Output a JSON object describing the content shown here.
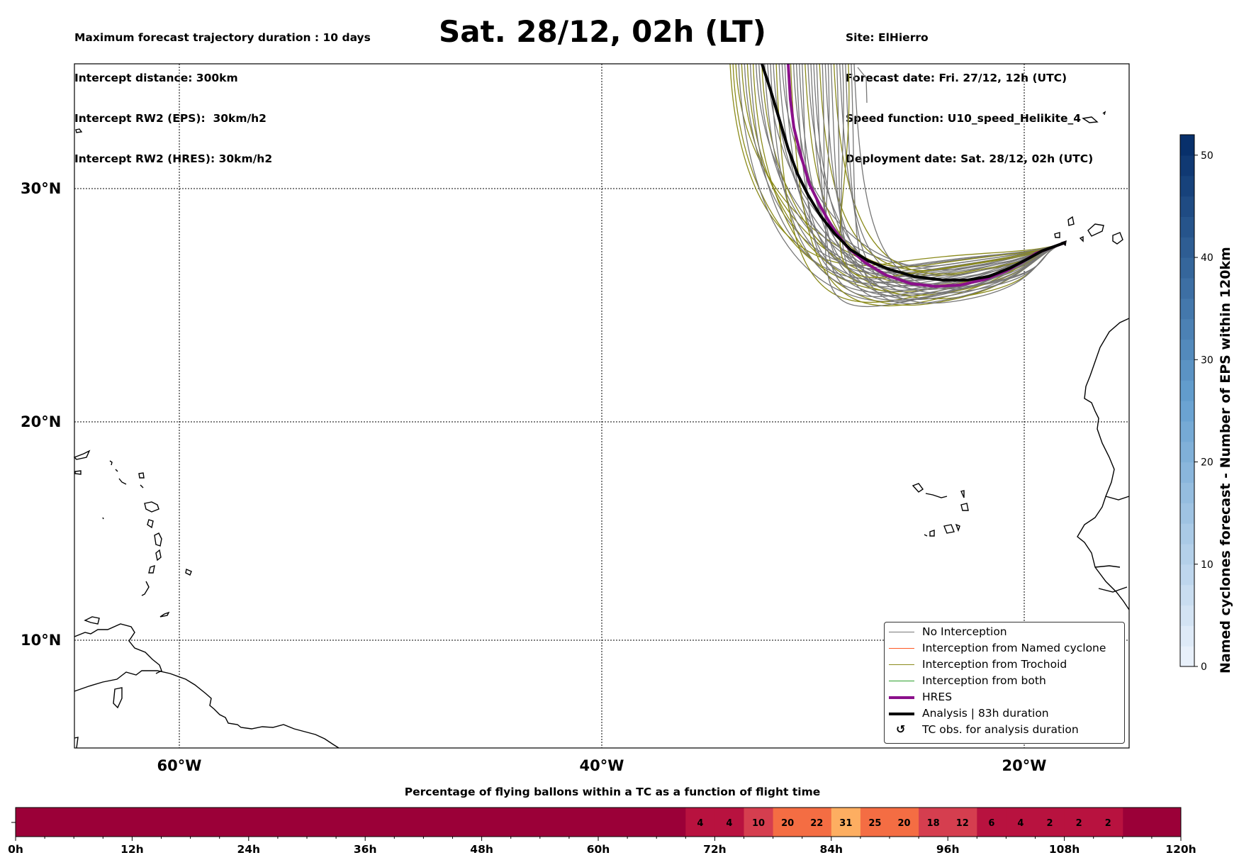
{
  "header": {
    "left": [
      "Maximum forecast trajectory duration : 10 days",
      "Intercept distance: 300km",
      "Intercept RW2 (EPS):  30km/h2",
      "Intercept RW2 (HRES): 30km/h2"
    ],
    "title": "Sat. 28/12, 02h (LT)",
    "right": [
      "Site: ElHierro",
      "Forecast date: Fri. 27/12, 12h (UTC)",
      "Speed function: U10_speed_Helikite_4",
      "Deployment date: Sat. 28/12, 02h (UTC)"
    ]
  },
  "map": {
    "lat_labels": [
      "30°N",
      "20°N",
      "10°N"
    ],
    "lon_labels": [
      "60°W",
      "40°W",
      "20°W"
    ],
    "colors": {
      "no_interception": "#777777",
      "named_cyclone": "#ff5722",
      "trochoid": "#8a8a1a",
      "both": "#2ca02c",
      "hres": "#8b108b",
      "analysis": "#000000"
    }
  },
  "legend": {
    "items": [
      "No Interception",
      "Interception from Named cyclone",
      "Interception from Trochoid",
      "Interception from both",
      "HRES",
      "Analysis | 83h duration",
      "TC obs. for analysis duration"
    ],
    "tc_symbol": "↺"
  },
  "colorbar": {
    "label": "Named cyclones forecast - Number of EPS within 120km",
    "ticks": [
      "0",
      "10",
      "20",
      "30",
      "40",
      "50"
    ],
    "max": 52
  },
  "timeline": {
    "title": "Percentage of flying ballons within a TC as a function of flight time",
    "ticks": [
      "0h",
      "12h",
      "24h",
      "36h",
      "48h",
      "60h",
      "72h",
      "84h",
      "96h",
      "108h",
      "120h"
    ],
    "start_hour": 69,
    "step_hours": 3,
    "percentages": [
      "4",
      "4",
      "10",
      "20",
      "22",
      "31",
      "25",
      "20",
      "18",
      "12",
      "6",
      "4",
      "2",
      "2",
      "2"
    ]
  }
}
